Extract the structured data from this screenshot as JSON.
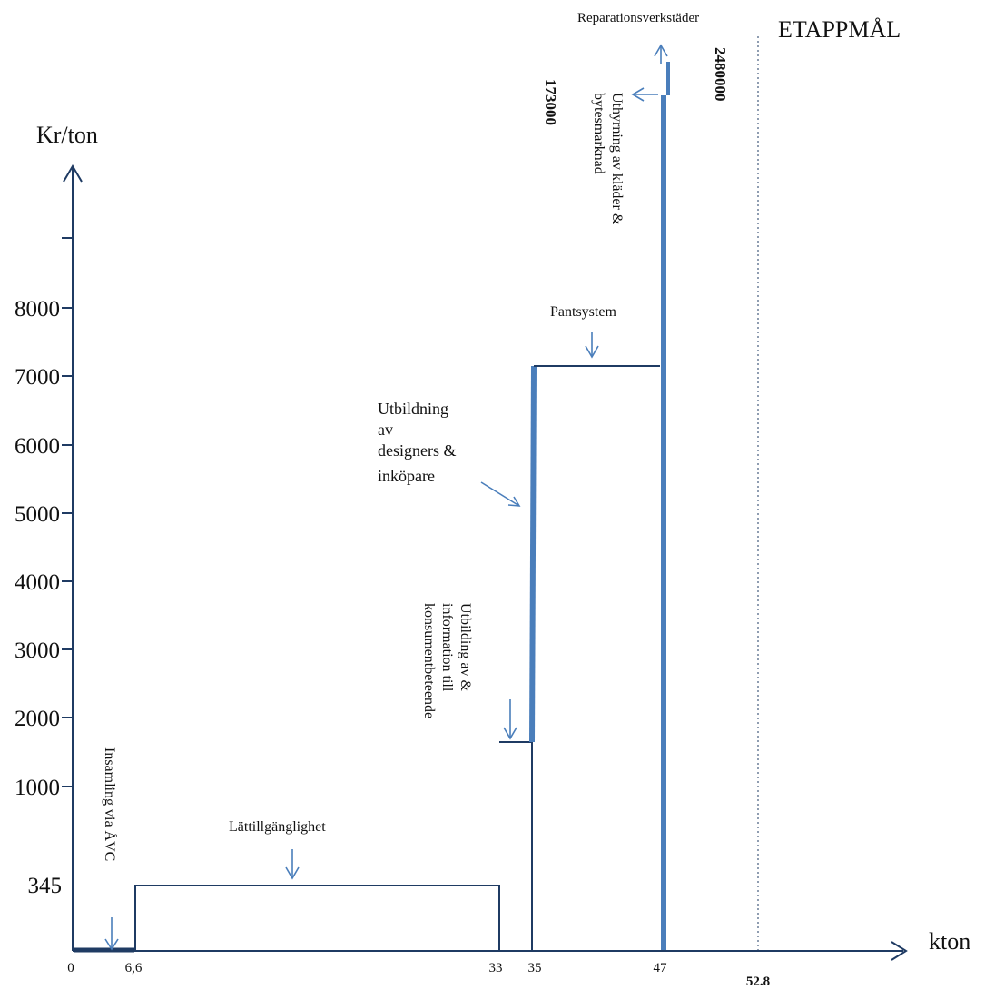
{
  "chart_data": {
    "type": "line",
    "subtype": "step-cost-curve",
    "ylabel": "Kr/ton",
    "xlabel": "kton",
    "target_label": "ETAPPMÅL",
    "y_ticks": [
      "8000",
      "7000",
      "6000",
      "5000",
      "4000",
      "3000",
      "2000",
      "1000",
      "345"
    ],
    "x_ticks": [
      "0",
      "6,6",
      "33",
      "35",
      "47",
      "52.8"
    ],
    "steps": [
      {
        "name": "Insamling via ÅVC",
        "x_start": 0,
        "x_end": 6.6,
        "y": 0
      },
      {
        "name": "Lättillgänglighet",
        "x_start": 6.6,
        "x_end": 33,
        "y": 345
      },
      {
        "name": "Utbilding av & information till konsumentbeteende",
        "x_start": 33,
        "x_end": 35,
        "y": 1650
      },
      {
        "name": "Utbildning av designers & inköpare",
        "x_start": 35,
        "x_end": 35,
        "y": 7100
      },
      {
        "name": "Pantsystem",
        "x_start": 35,
        "x_end": 47,
        "y": 7100
      },
      {
        "name": "Uthyrning av kläder & bytesmarknad",
        "x_start": 47,
        "x_end": 47,
        "y": 173000
      },
      {
        "name": "Reparationsverkstäder",
        "x_start": 47,
        "x_end": 47,
        "y": 2480000
      }
    ],
    "target_x": 52.8,
    "annotations": {
      "insamling": "Insamling via ÅVC",
      "lattillganglighet": "Lättillgänglighet",
      "konsument_lines": [
        "Utbilding av &",
        "information till",
        "konsumentbeteende"
      ],
      "designers_lines": [
        "Utbildning",
        "av",
        "designers &",
        "inköpare"
      ],
      "pantsystem": "Pantsystem",
      "uthyrning_lines": [
        "Uthyrning av kläder &",
        "bytesmarknad"
      ],
      "reparation": "Reparationsverkstäder",
      "value_173000": "173000",
      "value_2480000": "2480000"
    },
    "colors": {
      "axis": "#1f3b63",
      "accent": "#4a7ebb"
    },
    "grid": false,
    "legend": "none"
  }
}
